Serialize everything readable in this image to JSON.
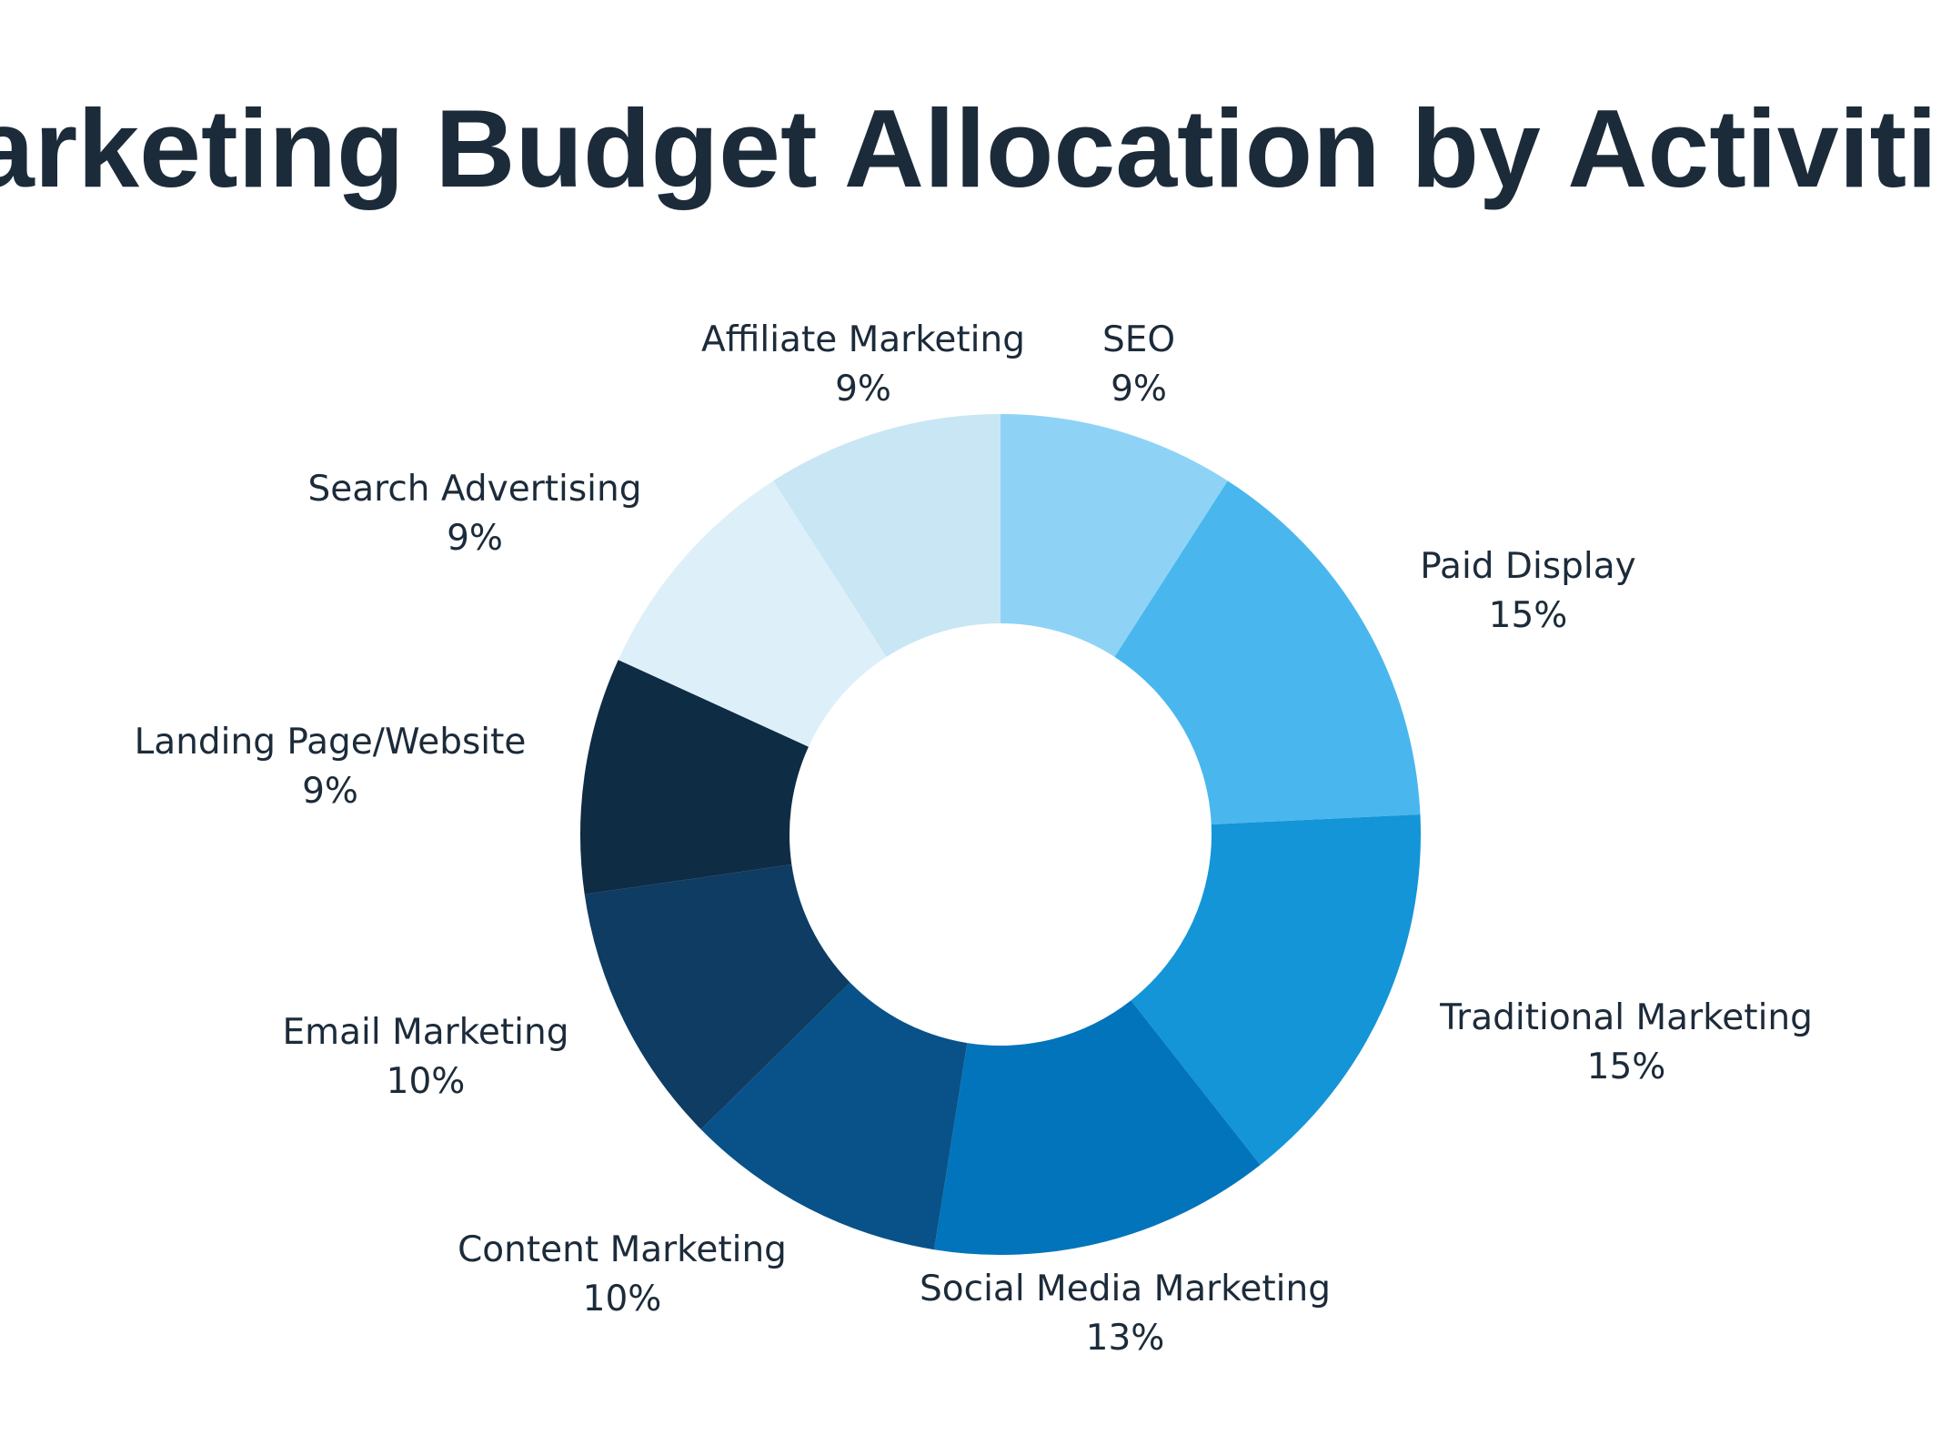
{
  "chart_data": {
    "type": "pie",
    "title": "Marketing Budget Allocation by Activities",
    "donut": true,
    "slices": [
      {
        "label": "SEO",
        "value": 9,
        "value_label": "9%",
        "color": "#8ed3f6"
      },
      {
        "label": "Paid Display",
        "value": 15,
        "value_label": "15%",
        "color": "#49b7ee"
      },
      {
        "label": "Traditional Marketing",
        "value": 15,
        "value_label": "15%",
        "color": "#1395d7"
      },
      {
        "label": "Social Media Marketing",
        "value": 13,
        "value_label": "13%",
        "color": "#0274bb"
      },
      {
        "label": "Content Marketing",
        "value": 10,
        "value_label": "10%",
        "color": "#095289"
      },
      {
        "label": "Email Marketing",
        "value": 10,
        "value_label": "10%",
        "color": "#0e3c63"
      },
      {
        "label": "Landing Page/Website",
        "value": 9,
        "value_label": "9%",
        "color": "#0f2c45"
      },
      {
        "label": "Search Advertising",
        "value": 9,
        "value_label": "9%",
        "color": "#ddf0f9"
      },
      {
        "label": "Affiliate Marketing",
        "value": 9,
        "value_label": "9%",
        "color": "#c9e6f5"
      }
    ],
    "start_angle": "top",
    "direction": "clockwise",
    "legend": "none"
  }
}
